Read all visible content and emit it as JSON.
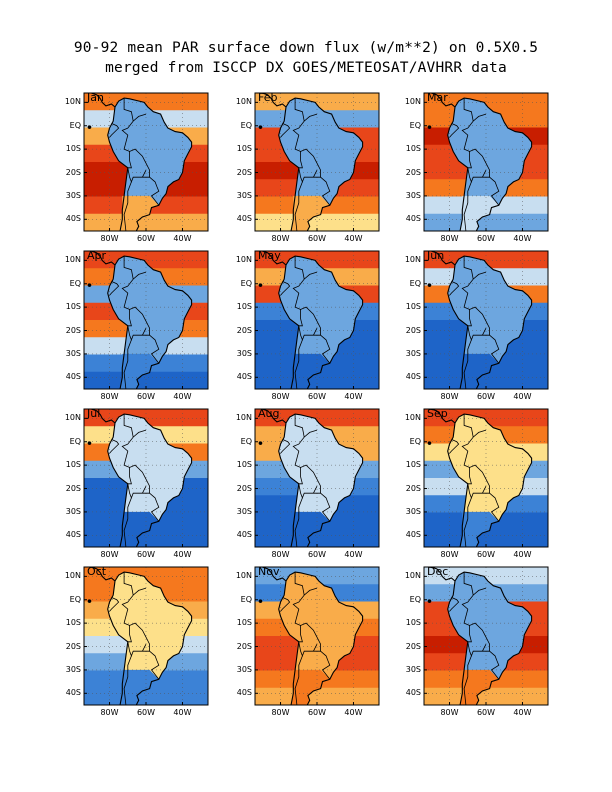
{
  "title": {
    "line1": "90-92 mean PAR surface down flux (w/m**2) on 0.5X0.5",
    "line2": "merged from ISCCP DX GOES/METEOSAT/AVHRR data"
  },
  "axes": {
    "lat_labels": [
      "10N",
      "EQ",
      "10S",
      "20S",
      "30S",
      "40S"
    ],
    "lat_values": [
      10,
      0,
      -10,
      -20,
      -30,
      -40
    ],
    "lon_labels": [
      "80W",
      "60W",
      "40W"
    ],
    "lon_values": [
      -80,
      -60,
      -40
    ],
    "lat_range": [
      -45,
      14
    ],
    "lon_range": [
      -94,
      -26
    ]
  },
  "colors": {
    "dark_red": "#c81e00",
    "red": "#e8461a",
    "orange": "#f5781e",
    "light_orange": "#f9ac4a",
    "yellow": "#fde08a",
    "pale": "#f2f0e6",
    "light_blue": "#c8def0",
    "mid_blue": "#6da6df",
    "blue": "#3c82d6",
    "dark_blue": "#1e64c8"
  },
  "months": [
    {
      "label": "Jan",
      "bands": [
        "#f5781e",
        "#c8def0",
        "#f9ac4a",
        "#e8461a",
        "#c81e00",
        "#c81e00",
        "#e8461a",
        "#f9ac4a"
      ],
      "land": "#6da6df",
      "south": "#f9ac4a"
    },
    {
      "label": "Feb",
      "bands": [
        "#f9ac4a",
        "#6da6df",
        "#e8461a",
        "#e8461a",
        "#c81e00",
        "#e8461a",
        "#f5781e",
        "#fde08a"
      ],
      "land": "#6da6df",
      "south": "#f9ac4a"
    },
    {
      "label": "Mar",
      "bands": [
        "#f5781e",
        "#f5781e",
        "#c81e00",
        "#e8461a",
        "#e8461a",
        "#f5781e",
        "#c8def0",
        "#6da6df"
      ],
      "land": "#6da6df",
      "south": "#c8def0"
    },
    {
      "label": "Apr",
      "bands": [
        "#e8461a",
        "#f5781e",
        "#6da6df",
        "#e8461a",
        "#f5781e",
        "#c8def0",
        "#3c82d6",
        "#1e64c8"
      ],
      "land": "#6da6df",
      "south": "#3c82d6"
    },
    {
      "label": "May",
      "bands": [
        "#e8461a",
        "#f9ac4a",
        "#e8461a",
        "#3c82d6",
        "#1e64c8",
        "#1e64c8",
        "#1e64c8",
        "#1e64c8"
      ],
      "land": "#6da6df",
      "south": "#1e64c8"
    },
    {
      "label": "Jun",
      "bands": [
        "#e8461a",
        "#c8def0",
        "#f5781e",
        "#3c82d6",
        "#1e64c8",
        "#1e64c8",
        "#1e64c8",
        "#1e64c8"
      ],
      "land": "#6da6df",
      "south": "#1e64c8"
    },
    {
      "label": "Jul",
      "bands": [
        "#e8461a",
        "#fde08a",
        "#f5781e",
        "#6da6df",
        "#1e64c8",
        "#1e64c8",
        "#1e64c8",
        "#1e64c8"
      ],
      "land": "#c8def0",
      "south": "#1e64c8"
    },
    {
      "label": "Aug",
      "bands": [
        "#e8461a",
        "#f9ac4a",
        "#f9ac4a",
        "#6da6df",
        "#3c82d6",
        "#1e64c8",
        "#1e64c8",
        "#1e64c8"
      ],
      "land": "#c8def0",
      "south": "#1e64c8"
    },
    {
      "label": "Sep",
      "bands": [
        "#e8461a",
        "#f5781e",
        "#fde08a",
        "#6da6df",
        "#c8def0",
        "#3c82d6",
        "#1e64c8",
        "#1e64c8"
      ],
      "land": "#fde08a",
      "south": "#3c82d6"
    },
    {
      "label": "Oct",
      "bands": [
        "#f5781e",
        "#f5781e",
        "#f9ac4a",
        "#fde08a",
        "#c8def0",
        "#6da6df",
        "#3c82d6",
        "#3c82d6"
      ],
      "land": "#fde08a",
      "south": "#3c82d6"
    },
    {
      "label": "Nov",
      "bands": [
        "#6da6df",
        "#3c82d6",
        "#f9ac4a",
        "#f5781e",
        "#e8461a",
        "#e8461a",
        "#f5781e",
        "#f9ac4a"
      ],
      "land": "#f9ac4a",
      "south": "#f5781e"
    },
    {
      "label": "Dec",
      "bands": [
        "#c8def0",
        "#6da6df",
        "#e8461a",
        "#e8461a",
        "#c81e00",
        "#e8461a",
        "#f5781e",
        "#f9ac4a"
      ],
      "land": "#6da6df",
      "south": "#f5781e"
    }
  ]
}
